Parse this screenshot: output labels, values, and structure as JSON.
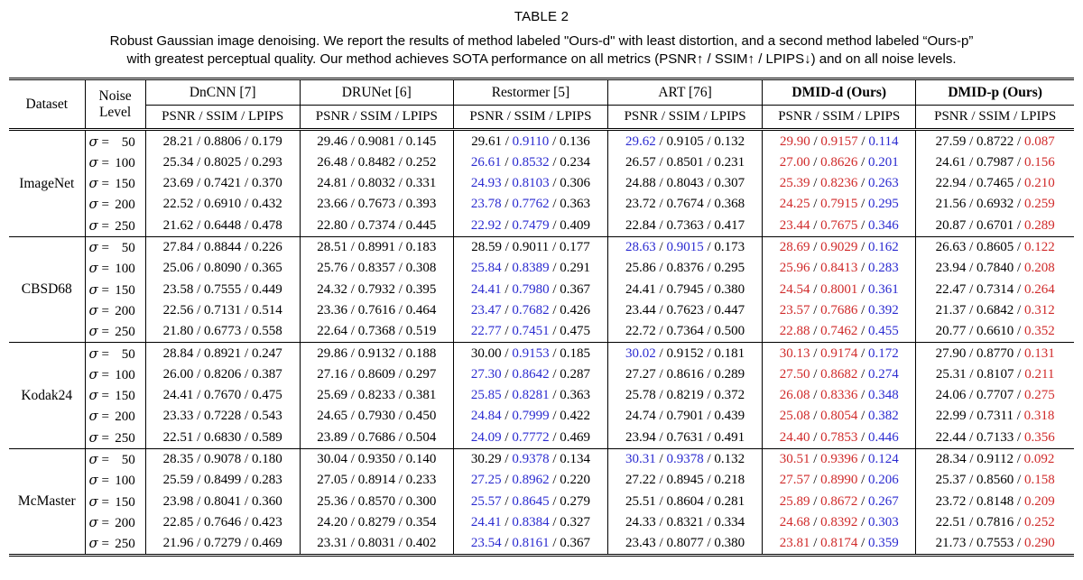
{
  "title": "TABLE 2",
  "caption": {
    "line1": "Robust Gaussian image denoising. We report the results of method labeled \"Ours-d\" with least distortion, and a second method labeled “Ours-p”",
    "line2": "with greatest perceptual quality. Our method achieves SOTA performance on all metrics (PSNR↑ / SSIM↑ / LPIPS↓) and on all noise levels."
  },
  "colors": {
    "best": "#d02a2a",
    "second_best": "#2a2ad0",
    "text": "#000000"
  },
  "value_color_codes": {
    "r": "best (red)",
    "b": "second best (blue)",
    "plain": "black"
  },
  "table": {
    "columns": {
      "dataset": "Dataset",
      "noise_line1": "Noise",
      "noise_line2": "Level",
      "metrics": "PSNR / SSIM / LPIPS",
      "sigma": "σ",
      "eq": "=",
      "methods": [
        {
          "name": "DnCNN [7]",
          "bold": false
        },
        {
          "name": "DRUNet [6]",
          "bold": false
        },
        {
          "name": "Restormer [5]",
          "bold": false
        },
        {
          "name": "ART [76]",
          "bold": false
        },
        {
          "name": "DMID-d (Ours)",
          "bold": true
        },
        {
          "name": "DMID-p (Ours)",
          "bold": true
        }
      ]
    },
    "groups": [
      {
        "dataset": "ImageNet",
        "rows": [
          {
            "noise": "50",
            "cells": [
              [
                "28.21",
                "0.8806",
                "0.179"
              ],
              [
                "29.46",
                "0.9081",
                "0.145"
              ],
              [
                "29.61",
                "b:0.9110",
                "0.136"
              ],
              [
                "b:29.62",
                "0.9105",
                "0.132"
              ],
              [
                "r:29.90",
                "r:0.9157",
                "b:0.114"
              ],
              [
                "27.59",
                "0.8722",
                "r:0.087"
              ]
            ]
          },
          {
            "noise": "100",
            "cells": [
              [
                "25.34",
                "0.8025",
                "0.293"
              ],
              [
                "26.48",
                "0.8482",
                "0.252"
              ],
              [
                "b:26.61",
                "b:0.8532",
                "0.234"
              ],
              [
                "26.57",
                "0.8501",
                "0.231"
              ],
              [
                "r:27.00",
                "r:0.8626",
                "b:0.201"
              ],
              [
                "24.61",
                "0.7987",
                "r:0.156"
              ]
            ]
          },
          {
            "noise": "150",
            "cells": [
              [
                "23.69",
                "0.7421",
                "0.370"
              ],
              [
                "24.81",
                "0.8032",
                "0.331"
              ],
              [
                "b:24.93",
                "b:0.8103",
                "0.306"
              ],
              [
                "24.88",
                "0.8043",
                "0.307"
              ],
              [
                "r:25.39",
                "r:0.8236",
                "b:0.263"
              ],
              [
                "22.94",
                "0.7465",
                "r:0.210"
              ]
            ]
          },
          {
            "noise": "200",
            "cells": [
              [
                "22.52",
                "0.6910",
                "0.432"
              ],
              [
                "23.66",
                "0.7673",
                "0.393"
              ],
              [
                "b:23.78",
                "b:0.7762",
                "0.363"
              ],
              [
                "23.72",
                "0.7674",
                "0.368"
              ],
              [
                "r:24.25",
                "r:0.7915",
                "b:0.295"
              ],
              [
                "21.56",
                "0.6932",
                "r:0.259"
              ]
            ]
          },
          {
            "noise": "250",
            "cells": [
              [
                "21.62",
                "0.6448",
                "0.478"
              ],
              [
                "22.80",
                "0.7374",
                "0.445"
              ],
              [
                "b:22.92",
                "b:0.7479",
                "0.409"
              ],
              [
                "22.84",
                "0.7363",
                "0.417"
              ],
              [
                "r:23.44",
                "r:0.7675",
                "b:0.346"
              ],
              [
                "20.87",
                "0.6701",
                "r:0.289"
              ]
            ]
          }
        ]
      },
      {
        "dataset": "CBSD68",
        "rows": [
          {
            "noise": "50",
            "cells": [
              [
                "27.84",
                "0.8844",
                "0.226"
              ],
              [
                "28.51",
                "0.8991",
                "0.183"
              ],
              [
                "28.59",
                "0.9011",
                "0.177"
              ],
              [
                "b:28.63",
                "b:0.9015",
                "0.173"
              ],
              [
                "r:28.69",
                "r:0.9029",
                "b:0.162"
              ],
              [
                "26.63",
                "0.8605",
                "r:0.122"
              ]
            ]
          },
          {
            "noise": "100",
            "cells": [
              [
                "25.06",
                "0.8090",
                "0.365"
              ],
              [
                "25.76",
                "0.8357",
                "0.308"
              ],
              [
                "b:25.84",
                "b:0.8389",
                "0.291"
              ],
              [
                "25.86",
                "0.8376",
                "0.295"
              ],
              [
                "r:25.96",
                "r:0.8413",
                "b:0.283"
              ],
              [
                "23.94",
                "0.7840",
                "r:0.208"
              ]
            ]
          },
          {
            "noise": "150",
            "cells": [
              [
                "23.58",
                "0.7555",
                "0.449"
              ],
              [
                "24.32",
                "0.7932",
                "0.395"
              ],
              [
                "b:24.41",
                "b:0.7980",
                "0.367"
              ],
              [
                "24.41",
                "0.7945",
                "0.380"
              ],
              [
                "r:24.54",
                "r:0.8001",
                "b:0.361"
              ],
              [
                "22.47",
                "0.7314",
                "r:0.264"
              ]
            ]
          },
          {
            "noise": "200",
            "cells": [
              [
                "22.56",
                "0.7131",
                "0.514"
              ],
              [
                "23.36",
                "0.7616",
                "0.464"
              ],
              [
                "b:23.47",
                "b:0.7682",
                "0.426"
              ],
              [
                "23.44",
                "0.7623",
                "0.447"
              ],
              [
                "r:23.57",
                "r:0.7686",
                "b:0.392"
              ],
              [
                "21.37",
                "0.6842",
                "r:0.312"
              ]
            ]
          },
          {
            "noise": "250",
            "cells": [
              [
                "21.80",
                "0.6773",
                "0.558"
              ],
              [
                "22.64",
                "0.7368",
                "0.519"
              ],
              [
                "b:22.77",
                "b:0.7451",
                "0.475"
              ],
              [
                "22.72",
                "0.7364",
                "0.500"
              ],
              [
                "r:22.88",
                "r:0.7462",
                "b:0.455"
              ],
              [
                "20.77",
                "0.6610",
                "r:0.352"
              ]
            ]
          }
        ]
      },
      {
        "dataset": "Kodak24",
        "rows": [
          {
            "noise": "50",
            "cells": [
              [
                "28.84",
                "0.8921",
                "0.247"
              ],
              [
                "29.86",
                "0.9132",
                "0.188"
              ],
              [
                "30.00",
                "b:0.9153",
                "0.185"
              ],
              [
                "b:30.02",
                "0.9152",
                "0.181"
              ],
              [
                "r:30.13",
                "r:0.9174",
                "b:0.172"
              ],
              [
                "27.90",
                "0.8770",
                "r:0.131"
              ]
            ]
          },
          {
            "noise": "100",
            "cells": [
              [
                "26.00",
                "0.8206",
                "0.387"
              ],
              [
                "27.16",
                "0.8609",
                "0.297"
              ],
              [
                "b:27.30",
                "b:0.8642",
                "0.287"
              ],
              [
                "27.27",
                "0.8616",
                "0.289"
              ],
              [
                "r:27.50",
                "r:0.8682",
                "b:0.274"
              ],
              [
                "25.31",
                "0.8107",
                "r:0.211"
              ]
            ]
          },
          {
            "noise": "150",
            "cells": [
              [
                "24.41",
                "0.7670",
                "0.475"
              ],
              [
                "25.69",
                "0.8233",
                "0.381"
              ],
              [
                "b:25.85",
                "b:0.8281",
                "0.363"
              ],
              [
                "25.78",
                "0.8219",
                "0.372"
              ],
              [
                "r:26.08",
                "r:0.8336",
                "b:0.348"
              ],
              [
                "24.06",
                "0.7707",
                "r:0.275"
              ]
            ]
          },
          {
            "noise": "200",
            "cells": [
              [
                "23.33",
                "0.7228",
                "0.543"
              ],
              [
                "24.65",
                "0.7930",
                "0.450"
              ],
              [
                "b:24.84",
                "b:0.7999",
                "0.422"
              ],
              [
                "24.74",
                "0.7901",
                "0.439"
              ],
              [
                "r:25.08",
                "r:0.8054",
                "b:0.382"
              ],
              [
                "22.99",
                "0.7311",
                "r:0.318"
              ]
            ]
          },
          {
            "noise": "250",
            "cells": [
              [
                "22.51",
                "0.6830",
                "0.589"
              ],
              [
                "23.89",
                "0.7686",
                "0.504"
              ],
              [
                "b:24.09",
                "b:0.7772",
                "0.469"
              ],
              [
                "23.94",
                "0.7631",
                "0.491"
              ],
              [
                "r:24.40",
                "r:0.7853",
                "b:0.446"
              ],
              [
                "22.44",
                "0.7133",
                "r:0.356"
              ]
            ]
          }
        ]
      },
      {
        "dataset": "McMaster",
        "rows": [
          {
            "noise": "50",
            "cells": [
              [
                "28.35",
                "0.9078",
                "0.180"
              ],
              [
                "30.04",
                "0.9350",
                "0.140"
              ],
              [
                "30.29",
                "b:0.9378",
                "0.134"
              ],
              [
                "b:30.31",
                "b:0.9378",
                "0.132"
              ],
              [
                "r:30.51",
                "r:0.9396",
                "b:0.124"
              ],
              [
                "28.34",
                "0.9112",
                "r:0.092"
              ]
            ]
          },
          {
            "noise": "100",
            "cells": [
              [
                "25.59",
                "0.8499",
                "0.283"
              ],
              [
                "27.05",
                "0.8914",
                "0.233"
              ],
              [
                "b:27.25",
                "b:0.8962",
                "0.220"
              ],
              [
                "27.22",
                "0.8945",
                "0.218"
              ],
              [
                "r:27.57",
                "r:0.8990",
                "b:0.206"
              ],
              [
                "25.37",
                "0.8560",
                "r:0.158"
              ]
            ]
          },
          {
            "noise": "150",
            "cells": [
              [
                "23.98",
                "0.8041",
                "0.360"
              ],
              [
                "25.36",
                "0.8570",
                "0.300"
              ],
              [
                "b:25.57",
                "b:0.8645",
                "0.279"
              ],
              [
                "25.51",
                "0.8604",
                "0.281"
              ],
              [
                "r:25.89",
                "r:0.8672",
                "b:0.267"
              ],
              [
                "23.72",
                "0.8148",
                "r:0.209"
              ]
            ]
          },
          {
            "noise": "200",
            "cells": [
              [
                "22.85",
                "0.7646",
                "0.423"
              ],
              [
                "24.20",
                "0.8279",
                "0.354"
              ],
              [
                "b:24.41",
                "b:0.8384",
                "0.327"
              ],
              [
                "24.33",
                "0.8321",
                "0.334"
              ],
              [
                "r:24.68",
                "r:0.8392",
                "b:0.303"
              ],
              [
                "22.51",
                "0.7816",
                "r:0.252"
              ]
            ]
          },
          {
            "noise": "250",
            "cells": [
              [
                "21.96",
                "0.7279",
                "0.469"
              ],
              [
                "23.31",
                "0.8031",
                "0.402"
              ],
              [
                "b:23.54",
                "b:0.8161",
                "0.367"
              ],
              [
                "23.43",
                "0.8077",
                "0.380"
              ],
              [
                "r:23.81",
                "r:0.8174",
                "b:0.359"
              ],
              [
                "21.73",
                "0.7553",
                "r:0.290"
              ]
            ]
          }
        ]
      }
    ]
  }
}
